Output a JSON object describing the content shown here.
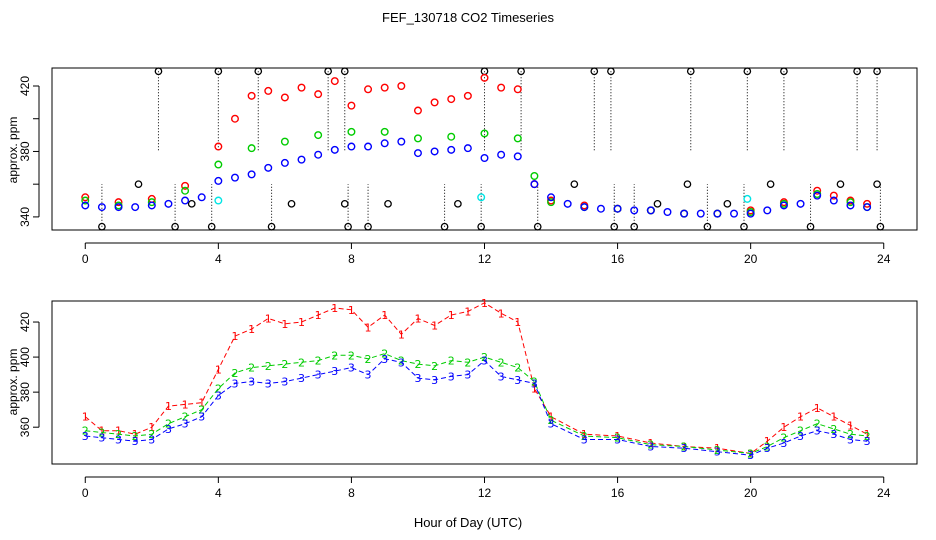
{
  "chart_data": {
    "title": "FEF_130718  CO2 Timeseries",
    "xlabel": "Hour of Day (UTC)",
    "xlim": [
      -1,
      25
    ],
    "xticks": [
      0,
      4,
      8,
      12,
      16,
      20,
      24
    ],
    "grid": false,
    "legend": "none",
    "colors": {
      "series1": "#ff0000",
      "series2": "#00cc00",
      "series3": "#0000ff",
      "cyan": "#00e5e5",
      "black": "#000000"
    },
    "panels": [
      {
        "type": "scatter",
        "ylabel": "approx. ppm",
        "ylim": [
          332,
          431
        ],
        "yticks": [
          340,
          360,
          380,
          400,
          420
        ],
        "ytick_labels": [
          "340",
          "",
          "380",
          "",
          "420"
        ],
        "series": [
          {
            "marker": "circle",
            "color": "#ff0000",
            "x": [
              0,
              1,
              2,
              3,
              4,
              4.5,
              5,
              5.5,
              6,
              6.5,
              7,
              7.5,
              8,
              8.5,
              9,
              9.5,
              10,
              10.5,
              11,
              11.5,
              12,
              12.5,
              13,
              13.5,
              14,
              15,
              16,
              17,
              18,
              19,
              20,
              21,
              22,
              22.5,
              23,
              23.5
            ],
            "y": [
              352,
              349,
              351,
              359,
              383,
              400,
              414,
              417,
              413,
              419,
              415,
              423,
              408,
              418,
              419,
              420,
              405,
              410,
              412,
              414,
              425,
              419,
              418,
              360,
              350,
              347,
              345,
              344,
              342,
              342,
              344,
              349,
              356,
              353,
              350,
              348
            ]
          },
          {
            "marker": "circle",
            "color": "#00cc00",
            "x": [
              0,
              1,
              2,
              3,
              4,
              5,
              6,
              7,
              8,
              9,
              10,
              11,
              12,
              13,
              13.5,
              14,
              15,
              16,
              17,
              18,
              19,
              20,
              21,
              22,
              23,
              23.5
            ],
            "y": [
              350,
              347,
              349,
              356,
              372,
              382,
              386,
              390,
              392,
              392,
              388,
              389,
              391,
              388,
              365,
              349,
              346,
              345,
              344,
              342,
              342,
              343,
              348,
              354,
              349,
              346
            ]
          },
          {
            "marker": "circle",
            "color": "#0000ff",
            "x": [
              0,
              0.5,
              1,
              1.5,
              2,
              2.5,
              3,
              3.5,
              4,
              4.5,
              5,
              5.5,
              6,
              6.5,
              7,
              7.5,
              8,
              8.5,
              9,
              9.5,
              10,
              10.5,
              11,
              11.5,
              12,
              12.5,
              13,
              13.5,
              14,
              14.5,
              15,
              15.5,
              16,
              16.5,
              17,
              17.5,
              18,
              18.5,
              19,
              19.5,
              20,
              20.5,
              21,
              21.5,
              22,
              22.5,
              23,
              23.5
            ],
            "y": [
              347,
              346,
              346,
              346,
              347,
              348,
              350,
              352,
              362,
              364,
              366,
              370,
              373,
              375,
              378,
              381,
              383,
              383,
              385,
              386,
              379,
              380,
              381,
              382,
              376,
              378,
              377,
              360,
              352,
              348,
              346,
              345,
              345,
              344,
              344,
              343,
              342,
              342,
              342,
              342,
              342,
              344,
              347,
              348,
              353,
              350,
              347,
              346
            ]
          }
        ],
        "outliers_black": {
          "high_x": [
            2.2,
            4,
            5.2,
            7.3,
            7.8,
            12,
            13.1,
            15.3,
            15.8,
            18.2,
            19.9,
            21,
            23.2,
            23.8
          ],
          "low_x": [
            0.5,
            2.7,
            3.8,
            5.6,
            7.9,
            8.5,
            10.8,
            11.9,
            13.6,
            15.9,
            16.5,
            18.7,
            19.8,
            21.8,
            23.9
          ],
          "mid_x": [
            1.6,
            3.2,
            6.2,
            7.8,
            9.1,
            11.2,
            14.7,
            17.2,
            18.1,
            19.3,
            20.6,
            22.7,
            23.8
          ],
          "mid_y": [
            360,
            348,
            348,
            348,
            348,
            348,
            360,
            348,
            360,
            348,
            360,
            360,
            360
          ]
        },
        "outliers_cyan": {
          "x": [
            4,
            11.9,
            19.9
          ],
          "y": [
            350,
            352,
            351
          ]
        }
      },
      {
        "type": "scatter",
        "ylabel": "approx. ppm",
        "ylim": [
          339,
          432
        ],
        "yticks": [
          360,
          380,
          400,
          420
        ],
        "series": [
          {
            "name": "1",
            "marker": "1",
            "color": "#ff0000",
            "x": [
              0,
              0.5,
              1,
              1.5,
              2,
              2.5,
              3,
              3.5,
              4,
              4.5,
              5,
              5.5,
              6,
              6.5,
              7,
              7.5,
              8,
              8.5,
              9,
              9.5,
              10,
              10.5,
              11,
              11.5,
              12,
              12.5,
              13,
              13.5,
              14,
              15,
              16,
              17,
              18,
              19,
              20,
              20.5,
              21,
              21.5,
              22,
              22.5,
              23,
              23.5
            ],
            "y": [
              366,
              358,
              358,
              356,
              360,
              372,
              373,
              374,
              393,
              412,
              416,
              422,
              419,
              420,
              424,
              428,
              427,
              417,
              424,
              413,
              422,
              418,
              424,
              426,
              431,
              425,
              420,
              382,
              366,
              356,
              355,
              351,
              349,
              348,
              345,
              352,
              360,
              366,
              371,
              366,
              361,
              356
            ]
          },
          {
            "name": "2",
            "marker": "2",
            "color": "#00cc00",
            "x": [
              0,
              0.5,
              1,
              1.5,
              2,
              2.5,
              3,
              3.5,
              4,
              4.5,
              5,
              5.5,
              6,
              6.5,
              7,
              7.5,
              8,
              8.5,
              9,
              9.5,
              10,
              10.5,
              11,
              11.5,
              12,
              12.5,
              13,
              13.5,
              14,
              15,
              16,
              17,
              18,
              19,
              20,
              20.5,
              21,
              21.5,
              22,
              22.5,
              23,
              23.5
            ],
            "y": [
              358,
              357,
              356,
              355,
              356,
              362,
              366,
              370,
              382,
              391,
              394,
              395,
              396,
              397,
              398,
              401,
              401,
              399,
              402,
              398,
              396,
              395,
              398,
              397,
              400,
              397,
              394,
              386,
              364,
              355,
              354,
              350,
              349,
              347,
              345,
              349,
              354,
              358,
              362,
              359,
              356,
              355
            ]
          },
          {
            "name": "3",
            "marker": "3",
            "color": "#0000ff",
            "x": [
              0,
              0.5,
              1,
              1.5,
              2,
              2.5,
              3,
              3.5,
              4,
              4.5,
              5,
              5.5,
              6,
              6.5,
              7,
              7.5,
              8,
              8.5,
              9,
              9.5,
              10,
              10.5,
              11,
              11.5,
              12,
              12.5,
              13,
              13.5,
              14,
              15,
              16,
              17,
              18,
              19,
              20,
              20.5,
              21,
              21.5,
              22,
              22.5,
              23,
              23.5
            ],
            "y": [
              355,
              354,
              353,
              352,
              353,
              359,
              362,
              366,
              378,
              385,
              386,
              385,
              386,
              388,
              390,
              392,
              394,
              390,
              399,
              397,
              388,
              387,
              389,
              390,
              398,
              389,
              387,
              385,
              362,
              353,
              353,
              349,
              348,
              346,
              344,
              348,
              351,
              355,
              358,
              356,
              353,
              352
            ]
          }
        ]
      }
    ]
  }
}
